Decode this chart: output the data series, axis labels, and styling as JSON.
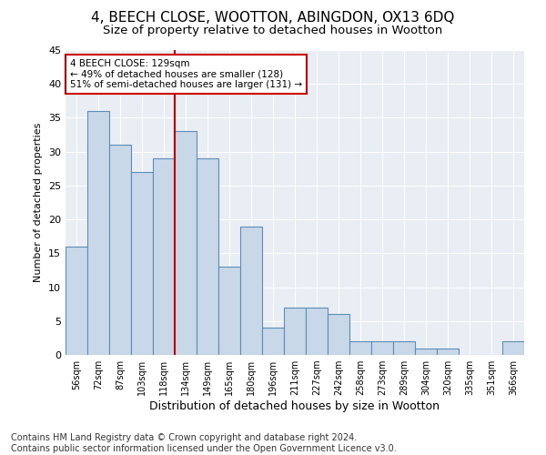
{
  "title": "4, BEECH CLOSE, WOOTTON, ABINGDON, OX13 6DQ",
  "subtitle": "Size of property relative to detached houses in Wootton",
  "xlabel": "Distribution of detached houses by size in Wootton",
  "ylabel": "Number of detached properties",
  "categories": [
    "56sqm",
    "72sqm",
    "87sqm",
    "103sqm",
    "118sqm",
    "134sqm",
    "149sqm",
    "165sqm",
    "180sqm",
    "196sqm",
    "211sqm",
    "227sqm",
    "242sqm",
    "258sqm",
    "273sqm",
    "289sqm",
    "304sqm",
    "320sqm",
    "335sqm",
    "351sqm",
    "366sqm"
  ],
  "values": [
    16,
    36,
    31,
    27,
    29,
    33,
    29,
    13,
    19,
    4,
    7,
    7,
    6,
    2,
    2,
    2,
    1,
    1,
    0,
    0,
    2
  ],
  "bar_color": "#c8d8e8",
  "bar_edge_color": "#5b8db8",
  "vline_x": 4.5,
  "vline_color": "#cc0000",
  "annotation_text": "4 BEECH CLOSE: 129sqm\n← 49% of detached houses are smaller (128)\n51% of semi-detached houses are larger (131) →",
  "annotation_box_color": "#ffffff",
  "annotation_box_edge": "#cc0000",
  "ylim": [
    0,
    45
  ],
  "yticks": [
    0,
    5,
    10,
    15,
    20,
    25,
    30,
    35,
    40,
    45
  ],
  "footer": "Contains HM Land Registry data © Crown copyright and database right 2024.\nContains public sector information licensed under the Open Government Licence v3.0.",
  "background_color": "#e8eef4",
  "title_fontsize": 11,
  "subtitle_fontsize": 9.5,
  "xlabel_fontsize": 9,
  "ylabel_fontsize": 8,
  "footer_fontsize": 7,
  "grid_color": "#ffffff",
  "ann_fontsize": 7.5
}
